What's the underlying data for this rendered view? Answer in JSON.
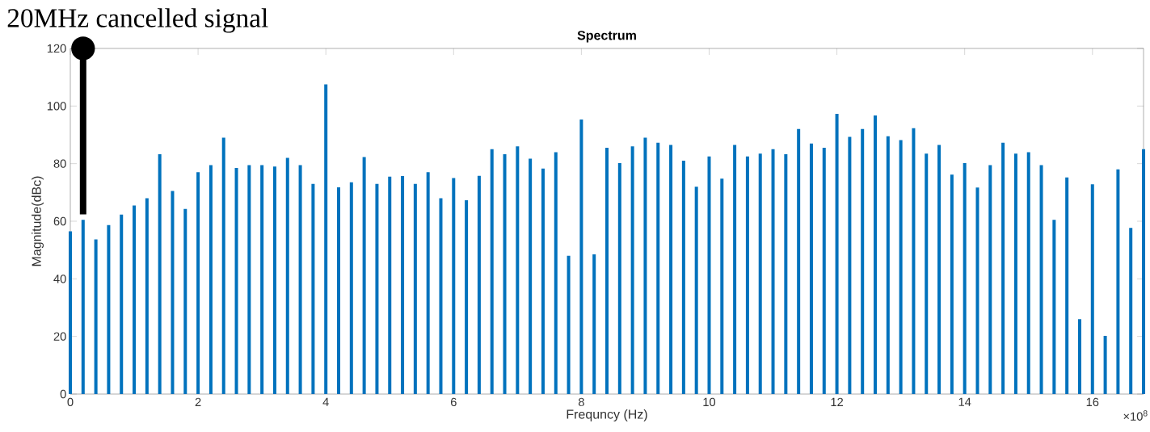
{
  "chart_data": {
    "type": "bar",
    "title": "Spectrum",
    "xlabel": "Frequncy (Hz)",
    "ylabel": "Magnitude(dBc)",
    "color": "#0072bd",
    "x": [
      0,
      0.2,
      0.4,
      0.6,
      0.8,
      1.0,
      1.2,
      1.4,
      1.6,
      1.8,
      2.0,
      2.2,
      2.4,
      2.6,
      2.8,
      3.0,
      3.2,
      3.4,
      3.6,
      3.8,
      4.0,
      4.2,
      4.4,
      4.6,
      4.8,
      5.0,
      5.2,
      5.4,
      5.6,
      5.8,
      6.0,
      6.2,
      6.4,
      6.6,
      6.8,
      7.0,
      7.2,
      7.4,
      7.6,
      7.8,
      8.0,
      8.2,
      8.4,
      8.6,
      8.8,
      9.0,
      9.2,
      9.4,
      9.6,
      9.8,
      10.0,
      10.2,
      10.4,
      10.6,
      10.8,
      11.0,
      11.2,
      11.4,
      11.6,
      11.8,
      12.0,
      12.2,
      12.4,
      12.6,
      12.8,
      13.0,
      13.2,
      13.4,
      13.6,
      13.8,
      14.0,
      14.2,
      14.4,
      14.6,
      14.8,
      15.0,
      15.2,
      15.4,
      15.6,
      15.8,
      16.0,
      16.2,
      16.4,
      16.6,
      16.8
    ],
    "values": [
      56.5,
      60.5,
      53.7,
      58.7,
      62.3,
      65.5,
      68,
      83.3,
      70.5,
      64.3,
      77,
      79.5,
      89,
      78.5,
      79.5,
      79.5,
      79,
      82,
      79.5,
      73,
      107.5,
      71.8,
      73.5,
      82.3,
      73,
      75.5,
      75.7,
      73,
      77,
      68,
      75,
      67.3,
      75.8,
      85,
      83.3,
      86,
      81.7,
      78.3,
      84,
      48,
      95.3,
      48.5,
      85.5,
      80.2,
      86,
      89,
      87.3,
      86.5,
      81,
      72,
      82.5,
      74.8,
      86.5,
      82.5,
      83.5,
      85,
      83.3,
      92,
      87,
      85.5,
      97.3,
      89.3,
      92,
      96.7,
      89.5,
      88.2,
      92.3,
      83.5,
      86.5,
      76.2,
      80.2,
      71.7,
      79.5,
      87.3,
      83.5,
      84,
      79.5,
      60.5,
      75.2,
      26,
      72.8,
      20.2,
      78,
      57.7,
      85
    ],
    "xlim": [
      0,
      16.8
    ],
    "xticks": [
      0,
      2,
      4,
      6,
      8,
      10,
      12,
      14,
      16
    ],
    "ylim": [
      0,
      120
    ],
    "yticks": [
      0,
      20,
      40,
      60,
      80,
      100,
      120
    ],
    "annotations": [
      {
        "text": "20MHz cancelled signal",
        "x": 0.2,
        "y": 120
      },
      "×10$^{8}$"
    ]
  }
}
